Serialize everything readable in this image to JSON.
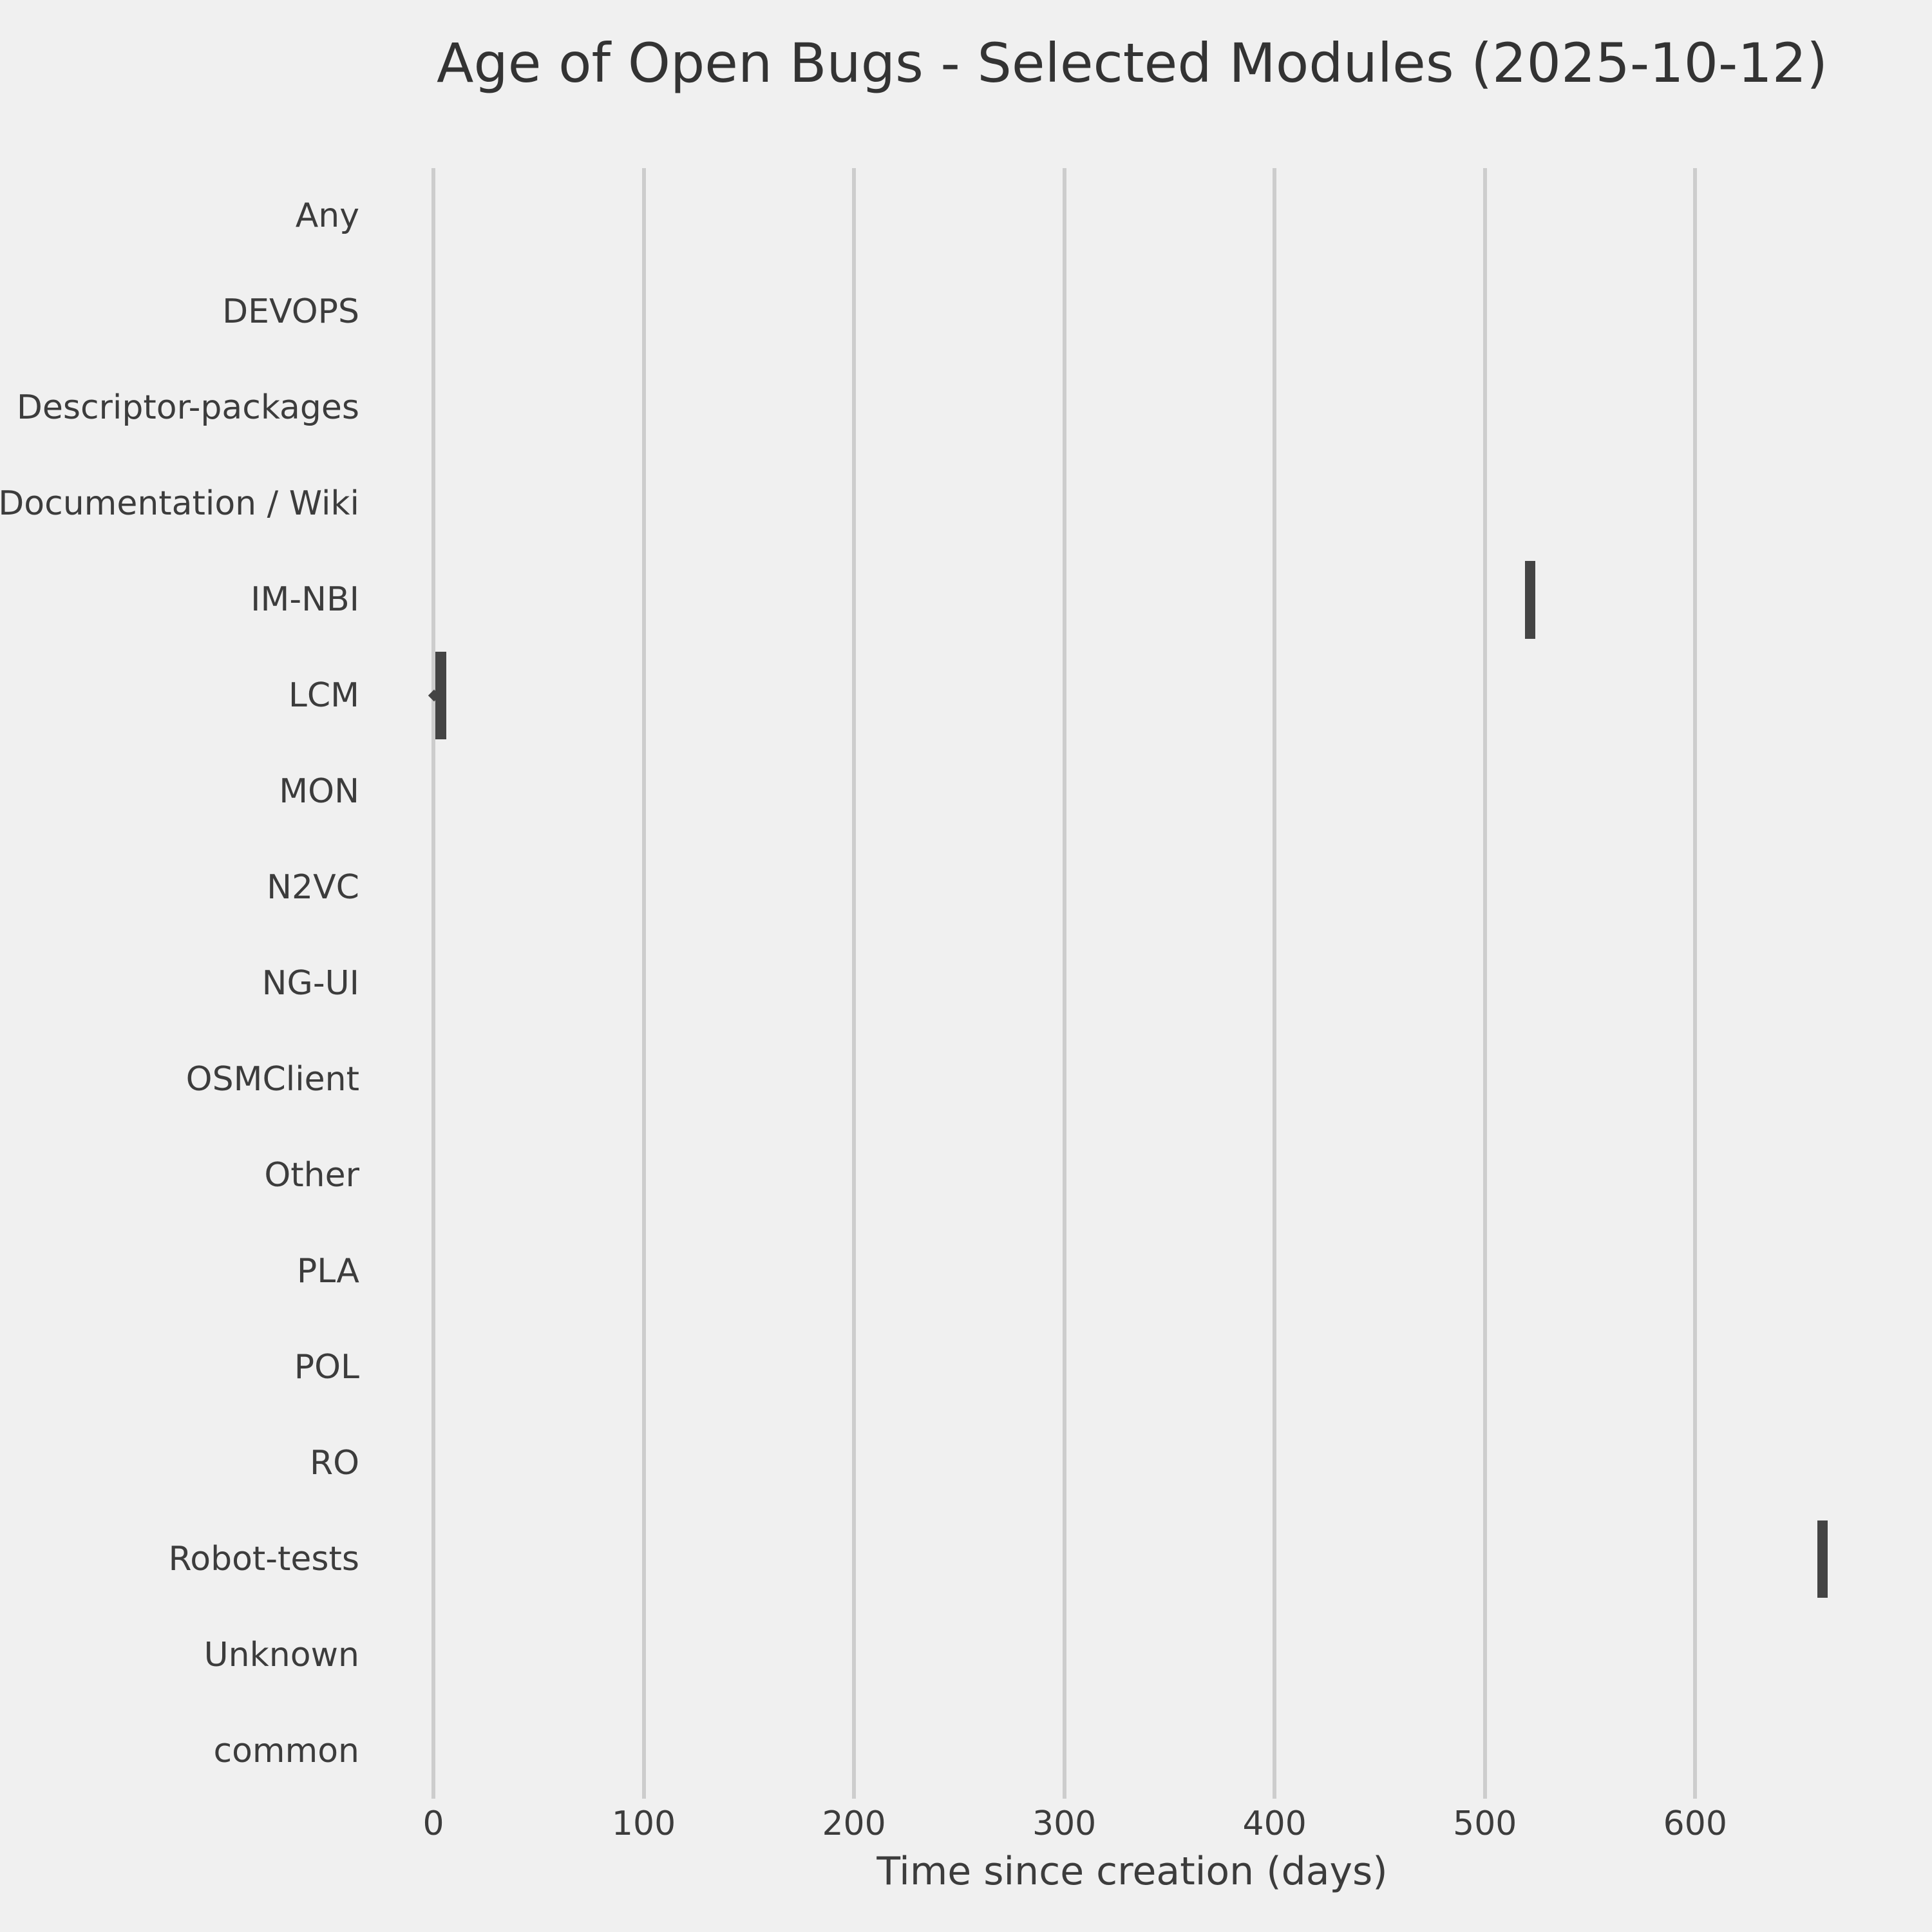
{
  "title": "Age of Open Bugs - Selected Modules (2025-10-12)",
  "chart_data": {
    "type": "box",
    "orientation": "horizontal",
    "title": "Age of Open Bugs - Selected Modules (2025-10-12)",
    "xlabel": "Time since creation (days)",
    "categories": [
      "Any",
      "DEVOPS",
      "Descriptor-packages",
      "Documentation / Wiki",
      "IM-NBI",
      "LCM",
      "MON",
      "N2VC",
      "NG-UI",
      "OSMClient",
      "Other",
      "PLA",
      "POL",
      "RO",
      "Robot-tests",
      "Unknown",
      "common"
    ],
    "x_ticks": [
      0,
      100,
      200,
      300,
      400,
      500,
      600
    ],
    "xlim": [
      -33,
      696
    ],
    "grid": true,
    "legend": false,
    "boxes": [
      {
        "category": "IM-NBI",
        "min_days": 519,
        "max_days": 524,
        "median_days": 522
      },
      {
        "category": "LCM",
        "min_days": 1,
        "max_days": 6,
        "median_days": 3,
        "outlier_days": 0
      },
      {
        "category": "Robot-tests",
        "min_days": 658,
        "max_days": 663,
        "median_days": 661
      }
    ],
    "box_thickness_px": {
      "IM-NBI": 121,
      "LCM": 136,
      "Robot-tests": 120
    },
    "colors": {
      "box": "#444444",
      "grid": "#cdcdcd",
      "background": "#f0f0f0",
      "text": "#3c3c3c"
    }
  }
}
